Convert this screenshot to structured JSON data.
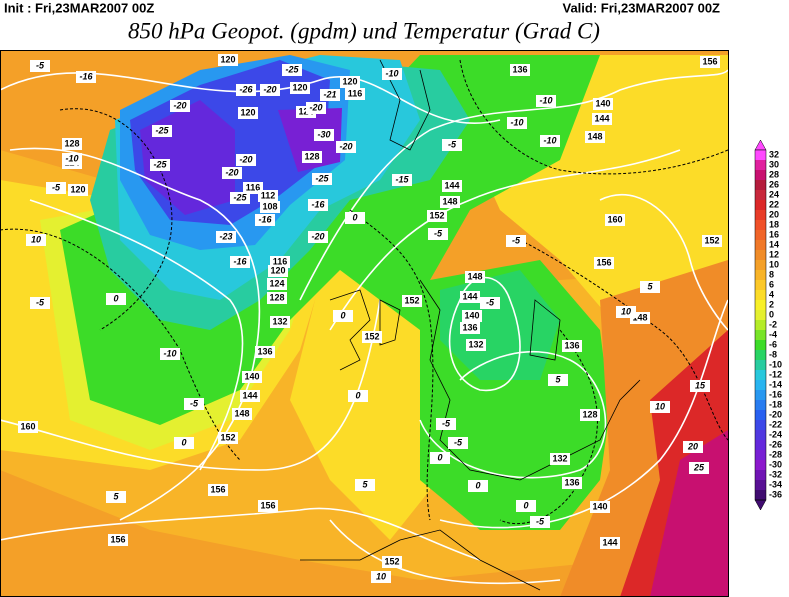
{
  "header": {
    "init": "Init : Fri,23MAR2007 00Z",
    "valid": "Valid: Fri,23MAR2007 00Z",
    "title": "850 hPa Geopot. (gpdm) und Temperatur (Grad C)"
  },
  "colorbar": {
    "levels": [
      32,
      30,
      28,
      26,
      24,
      22,
      20,
      18,
      16,
      14,
      12,
      10,
      8,
      6,
      4,
      2,
      0,
      -2,
      -4,
      -6,
      -8,
      -10,
      -12,
      -14,
      -16,
      -18,
      -20,
      -22,
      -24,
      -26,
      -28,
      -30,
      -32,
      -34,
      -36
    ],
    "colors": [
      "#ff48ff",
      "#e0209e",
      "#c81070",
      "#b41c3c",
      "#c8283c",
      "#dc2828",
      "#e83c28",
      "#f05028",
      "#f06428",
      "#f07828",
      "#f08c28",
      "#f4a028",
      "#f8b428",
      "#fcc828",
      "#fcdc28",
      "#f8f028",
      "#e4f030",
      "#b4ec28",
      "#78e428",
      "#3cdc28",
      "#28d464",
      "#28cca0",
      "#28c8dc",
      "#28b4f0",
      "#2898f0",
      "#287cf0",
      "#2860f0",
      "#3c48e8",
      "#5038e0",
      "#6428dc",
      "#7820d4",
      "#8c18cc",
      "#7014b4",
      "#581094",
      "#400c70"
    ]
  },
  "geopotential_labels": [
    120,
    120,
    120,
    124,
    128,
    116,
    112,
    108,
    116,
    120,
    124,
    128,
    132,
    136,
    140,
    144,
    148,
    152,
    156,
    156,
    156,
    160,
    152,
    152,
    148,
    144,
    140,
    136,
    132,
    136,
    128,
    132,
    136,
    140,
    144,
    152,
    148,
    152,
    156,
    160,
    148,
    144,
    140,
    136,
    156,
    124,
    128,
    120,
    144,
    148,
    152,
    120,
    116
  ],
  "temperature_labels": [
    -5,
    -16,
    -20,
    -25,
    -25,
    -10,
    -5,
    -20,
    -20,
    -25,
    -16,
    -23,
    -16,
    -10,
    -5,
    0,
    5,
    10,
    -5,
    0,
    -25,
    -26,
    -20,
    -21,
    -20,
    -30,
    -20,
    -25,
    -16,
    -10,
    -5,
    -15,
    -20,
    0,
    -5,
    -10,
    -10,
    -10,
    -5,
    -5,
    -5,
    0,
    -5,
    0,
    0,
    0,
    0,
    5,
    10,
    15,
    20,
    25,
    10,
    10,
    5,
    -5,
    5
  ]
}
